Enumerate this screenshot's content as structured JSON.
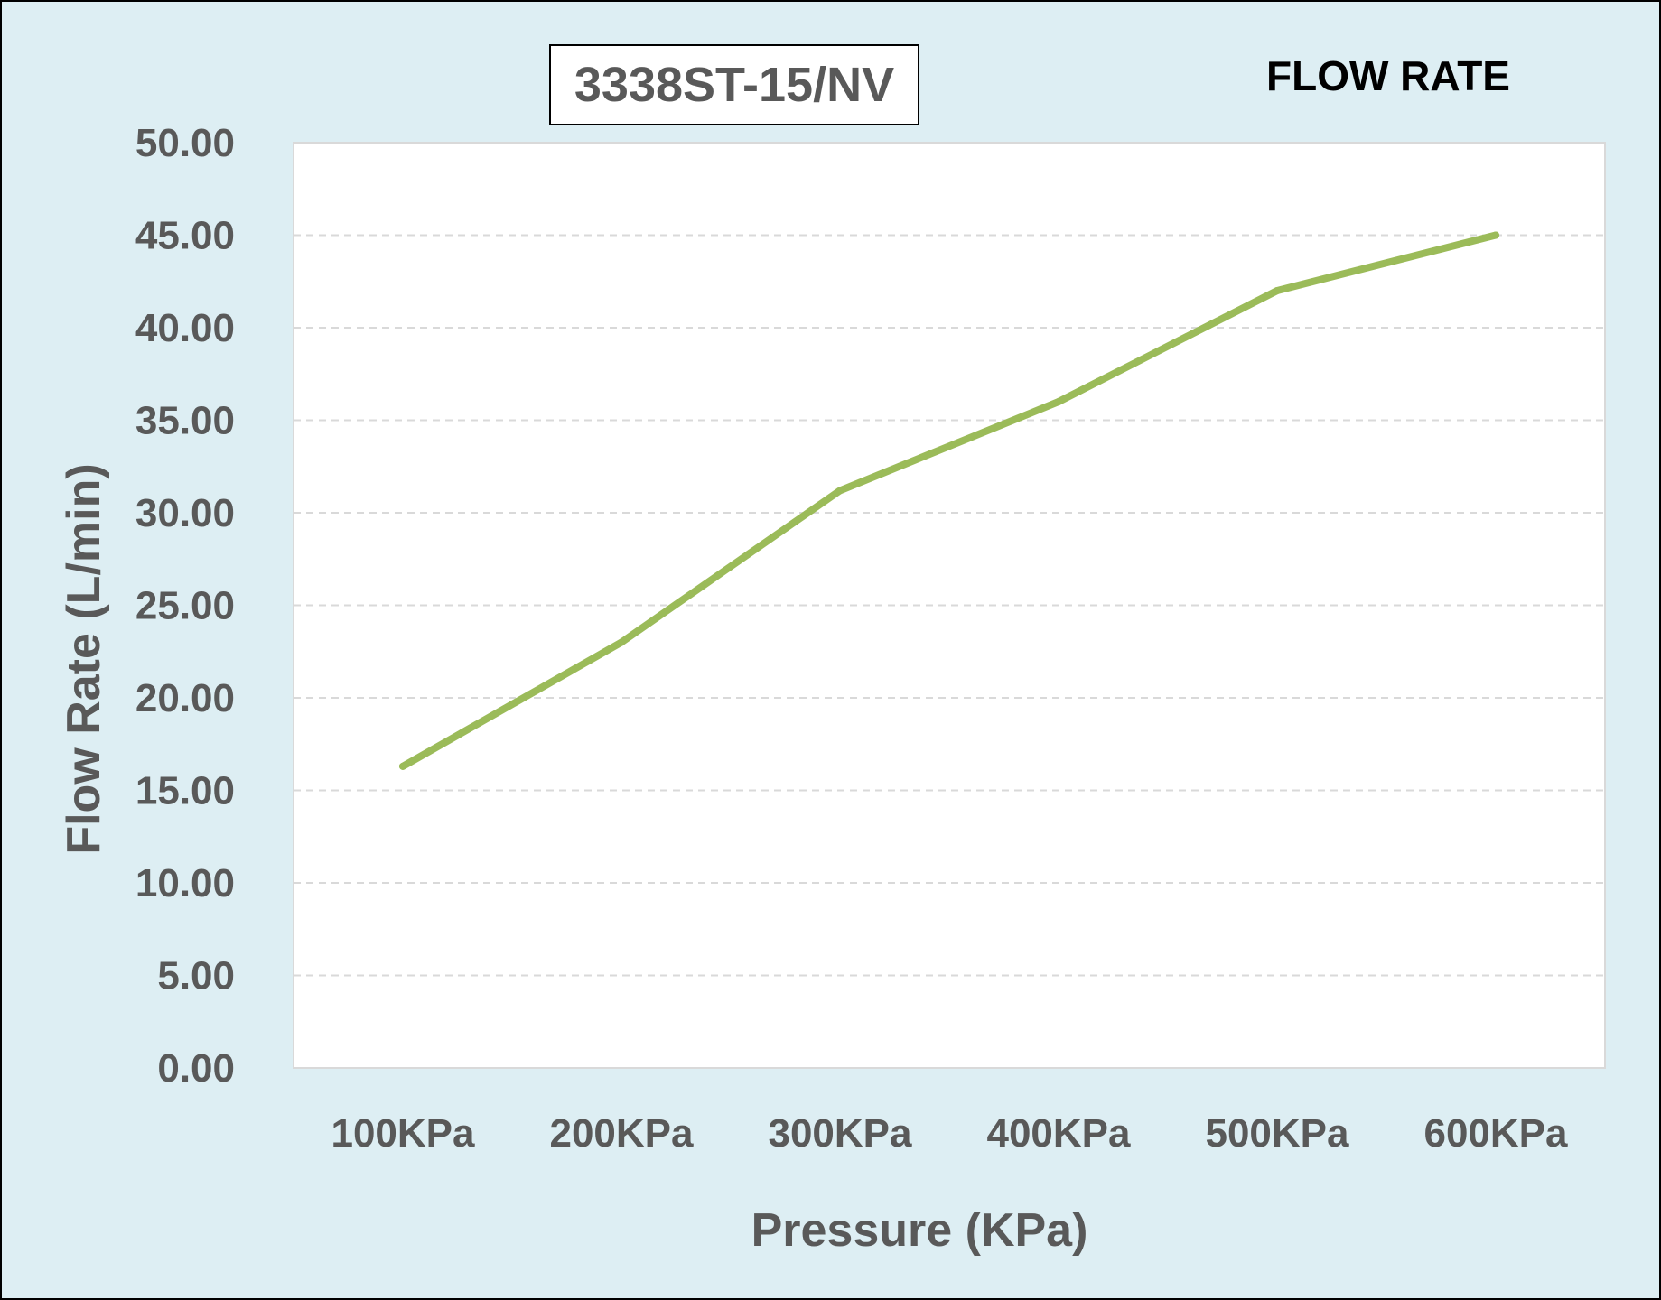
{
  "chart_data": {
    "type": "line",
    "title": "FLOW RATE",
    "model_label": "3338ST-15/NV",
    "xlabel": "Pressure (KPa)",
    "ylabel": "Flow Rate (L/min)",
    "categories": [
      "100KPa",
      "200KPa",
      "300KPa",
      "400KPa",
      "500KPa",
      "600KPa"
    ],
    "series": [
      {
        "values": [
          16.3,
          23.0,
          31.2,
          36.0,
          42.0,
          45.0
        ],
        "color": "#9bbb59"
      }
    ],
    "ylim": [
      0,
      50
    ],
    "yticks": [
      "0.00",
      "5.00",
      "10.00",
      "15.00",
      "20.00",
      "25.00",
      "30.00",
      "35.00",
      "40.00",
      "45.00",
      "50.00"
    ],
    "grid": "horizontal dashed",
    "legend": "none"
  },
  "colors": {
    "background": "#ddeef3",
    "plot_area": "#ffffff",
    "text": "#595959",
    "line": "#9bbb59"
  }
}
